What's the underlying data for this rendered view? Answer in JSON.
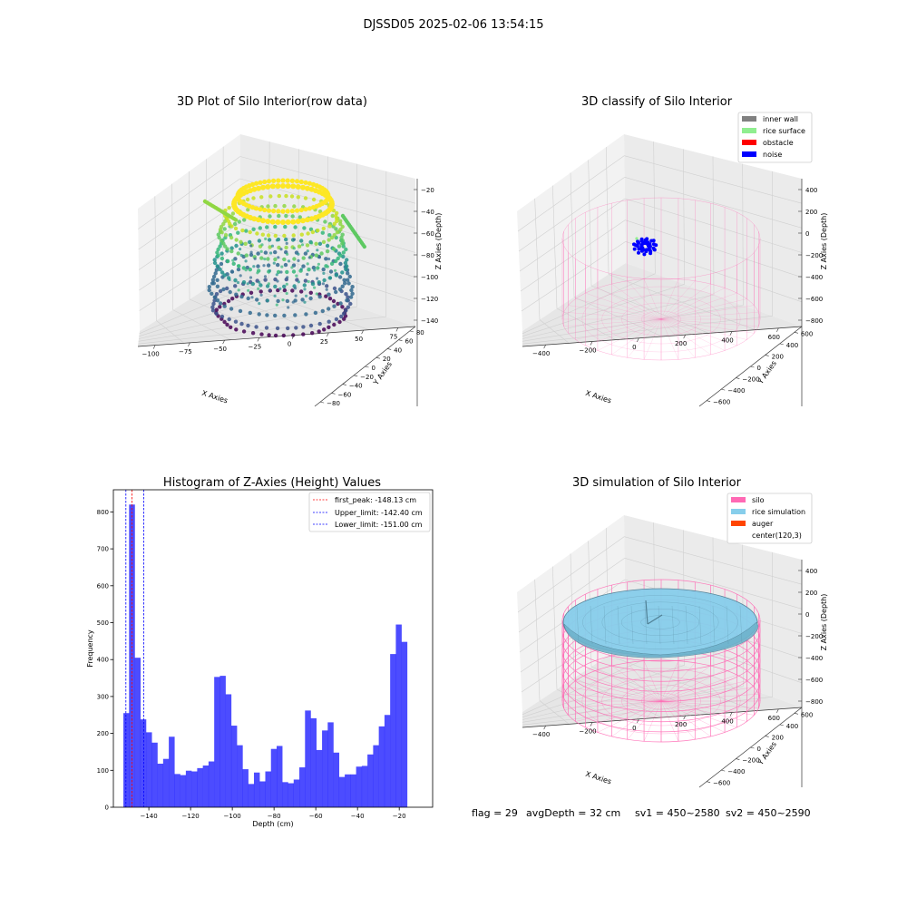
{
  "figure": {
    "suptitle": "DJSSD05 2025-02-06 13:54:15",
    "status_line": {
      "flag": "flag = 29",
      "avg_depth": "avgDepth = 32 cm",
      "sv1": "sv1 = 450~2580",
      "sv2": "sv2 = 450~2590"
    }
  },
  "colors": {
    "viridis_low": "#440154",
    "viridis_mid": "#31688e",
    "viridis_teal": "#35b779",
    "viridis_high": "#fde725",
    "hist_bar": "#0000ff",
    "peak_line": "#ff0000",
    "limit_line": "#0000ff",
    "silo": "#ff69b4",
    "rice_surface": "#90ee90",
    "inner_wall": "#808080",
    "obstacle": "#ff0000",
    "noise": "#0000ff",
    "rice_simulation": "#87ceeb",
    "auger": "#ff4500"
  },
  "chart_data": [
    {
      "type": "scatter3d",
      "title": "3D Plot of Silo Interior(row data)",
      "xlabel": "X Axies",
      "ylabel": "Y Axies",
      "zlabel": "Z Axies (Depth)",
      "x_ticks": [
        "−100",
        "−75",
        "−50",
        "−25",
        "0",
        "25",
        "50",
        "75"
      ],
      "y_ticks": [
        "−80",
        "−60",
        "−40",
        "−20",
        "0",
        "20",
        "40",
        "60",
        "80"
      ],
      "z_ticks": [
        "−140",
        "−120",
        "−100",
        "−80",
        "−60",
        "−40",
        "−20"
      ],
      "colormap": "viridis",
      "grid": true
    },
    {
      "type": "wireframe3d",
      "title": "3D classify of Silo Interior",
      "xlabel": "X Axies",
      "ylabel": "Y Axies",
      "zlabel": "Z Axies (Depth)",
      "x_ticks": [
        "−400",
        "−200",
        "0",
        "200",
        "400",
        "600"
      ],
      "y_ticks": [
        "−600",
        "−400",
        "−200",
        "0",
        "200",
        "400",
        "600"
      ],
      "z_ticks": [
        "−800",
        "−600",
        "−400",
        "−200",
        "0",
        "200",
        "400"
      ],
      "legend": [
        {
          "label": "inner wall",
          "color": "#808080"
        },
        {
          "label": "rice surface",
          "color": "#90ee90"
        },
        {
          "label": "obstacle",
          "color": "#ff0000"
        },
        {
          "label": "noise",
          "color": "#0000ff"
        }
      ],
      "legend_loc": "upper right",
      "grid": true
    },
    {
      "type": "bar",
      "title": "Histogram of Z-Axies (Height) Values",
      "xlabel": "Depth (cm)",
      "ylabel": "Frequency",
      "x_ticks": [
        -140,
        -120,
        -100,
        -80,
        -60,
        -40,
        -20
      ],
      "y_ticks": [
        0,
        100,
        200,
        300,
        400,
        500,
        600,
        700,
        800
      ],
      "xlim": [
        -157,
        -4
      ],
      "ylim": [
        0,
        860
      ],
      "bin_start": -152.2,
      "bin_width": 2.72,
      "values": [
        255,
        820,
        405,
        238,
        203,
        175,
        118,
        131,
        191,
        90,
        87,
        99,
        97,
        106,
        113,
        124,
        353,
        356,
        306,
        221,
        168,
        103,
        63,
        94,
        70,
        97,
        158,
        166,
        68,
        65,
        75,
        108,
        262,
        241,
        155,
        208,
        230,
        148,
        82,
        89,
        89,
        110,
        112,
        143,
        168,
        219,
        250,
        415,
        495,
        448
      ],
      "vlines": [
        {
          "label": "first_peak: -148.13 cm",
          "x": -148.13,
          "color": "#ff0000"
        },
        {
          "label": "Upper_limit: -142.40 cm",
          "x": -142.4,
          "color": "#0000ff"
        },
        {
          "label": "Lower_limit: -151.00 cm",
          "x": -151.0,
          "color": "#0000ff"
        }
      ],
      "legend_loc": "upper right"
    },
    {
      "type": "surface3d",
      "title": "3D simulation of Silo Interior",
      "xlabel": "X Axies",
      "ylabel": "Y Axies",
      "zlabel": "Z Axies (Depth)",
      "x_ticks": [
        "−400",
        "−200",
        "0",
        "200",
        "400",
        "600"
      ],
      "y_ticks": [
        "−600",
        "−400",
        "−200",
        "0",
        "200",
        "400",
        "600"
      ],
      "z_ticks": [
        "−800",
        "−600",
        "−400",
        "−200",
        "0",
        "200",
        "400"
      ],
      "legend": [
        {
          "label": "silo",
          "color": "#ff69b4"
        },
        {
          "label": "rice simulation",
          "color": "#87ceeb"
        },
        {
          "label": "auger",
          "color": "#ff4500"
        },
        {
          "label": "center(120,3)",
          "color": "#ffffff"
        }
      ],
      "legend_loc": "upper right",
      "grid": true
    }
  ]
}
